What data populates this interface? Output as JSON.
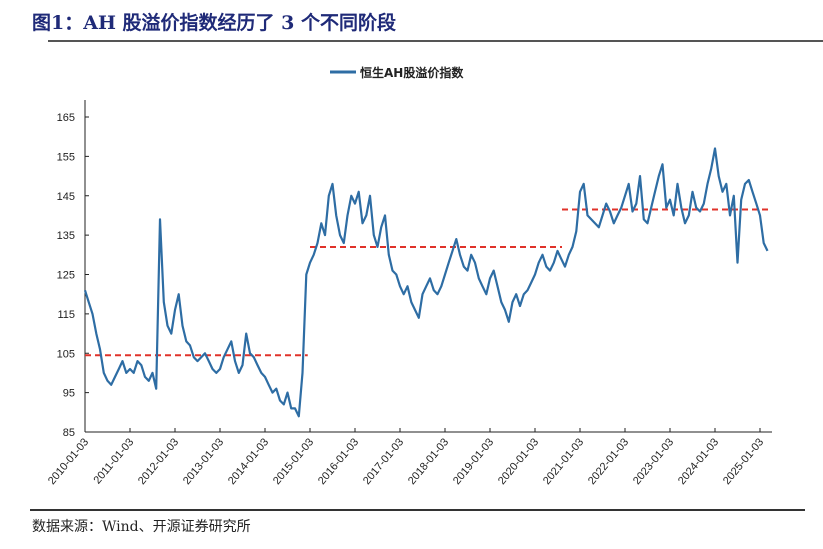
{
  "title": "图1：AH 股溢价指数经历了 3 个不同阶段",
  "source": "数据来源：Wind、开源证券研究所",
  "colors": {
    "series": "#2e6da4",
    "reference": "#e0322a",
    "title": "#1f2a78"
  },
  "chart_data": {
    "type": "line",
    "title": "",
    "xlabel": "",
    "ylabel": "",
    "ylim": [
      85,
      165
    ],
    "yticks": [
      85,
      95,
      105,
      115,
      125,
      135,
      145,
      155,
      165
    ],
    "xticks": [
      "2010-01-03",
      "2011-01-03",
      "2012-01-03",
      "2013-01-03",
      "2014-01-03",
      "2015-01-03",
      "2016-01-03",
      "2017-01-03",
      "2018-01-03",
      "2019-01-03",
      "2020-01-03",
      "2021-01-03",
      "2022-01-03",
      "2023-01-03",
      "2024-01-03",
      "2025-01-03"
    ],
    "legend": {
      "position": "top-center",
      "entries": [
        "恒生AH股溢价指数"
      ]
    },
    "grid": false,
    "series": [
      {
        "name": "恒生AH股溢价指数",
        "start": "2010-01",
        "frequency": "monthly",
        "values": [
          121,
          118,
          115,
          110,
          106,
          100,
          98,
          97,
          99,
          101,
          103,
          100,
          101,
          100,
          103,
          102,
          99,
          98,
          100,
          96,
          139,
          118,
          112,
          110,
          116,
          120,
          112,
          108,
          107,
          104,
          103,
          104,
          105,
          103,
          101,
          100,
          101,
          104,
          106,
          108,
          103,
          100,
          102,
          110,
          105,
          104,
          102,
          100,
          99,
          97,
          95,
          96,
          93,
          92,
          95,
          91,
          91,
          89,
          100,
          125,
          128,
          130,
          133,
          138,
          135,
          145,
          148,
          140,
          135,
          133,
          140,
          145,
          143,
          146,
          138,
          140,
          145,
          135,
          132,
          137,
          140,
          130,
          126,
          125,
          122,
          120,
          122,
          118,
          116,
          114,
          120,
          122,
          124,
          121,
          120,
          122,
          125,
          128,
          131,
          134,
          130,
          127,
          126,
          130,
          128,
          124,
          122,
          120,
          124,
          126,
          122,
          118,
          116,
          113,
          118,
          120,
          117,
          120,
          121,
          123,
          125,
          128,
          130,
          127,
          126,
          128,
          131,
          129,
          127,
          130,
          132,
          136,
          146,
          148,
          140,
          139,
          138,
          137,
          140,
          143,
          141,
          138,
          140,
          142,
          145,
          148,
          141,
          143,
          150,
          139,
          138,
          142,
          146,
          150,
          153,
          142,
          144,
          140,
          148,
          142,
          138,
          140,
          146,
          142,
          141,
          143,
          148,
          152,
          157,
          150,
          146,
          148,
          140,
          145,
          128,
          144,
          148,
          149,
          146,
          143,
          140,
          133,
          131
        ]
      }
    ],
    "reference_lines": [
      {
        "from": 2010.0,
        "to": 2014.95,
        "value": 104.5
      },
      {
        "from": 2015.0,
        "to": 2020.6,
        "value": 132
      },
      {
        "from": 2020.6,
        "to": 2025.2,
        "value": 141.5
      }
    ]
  }
}
